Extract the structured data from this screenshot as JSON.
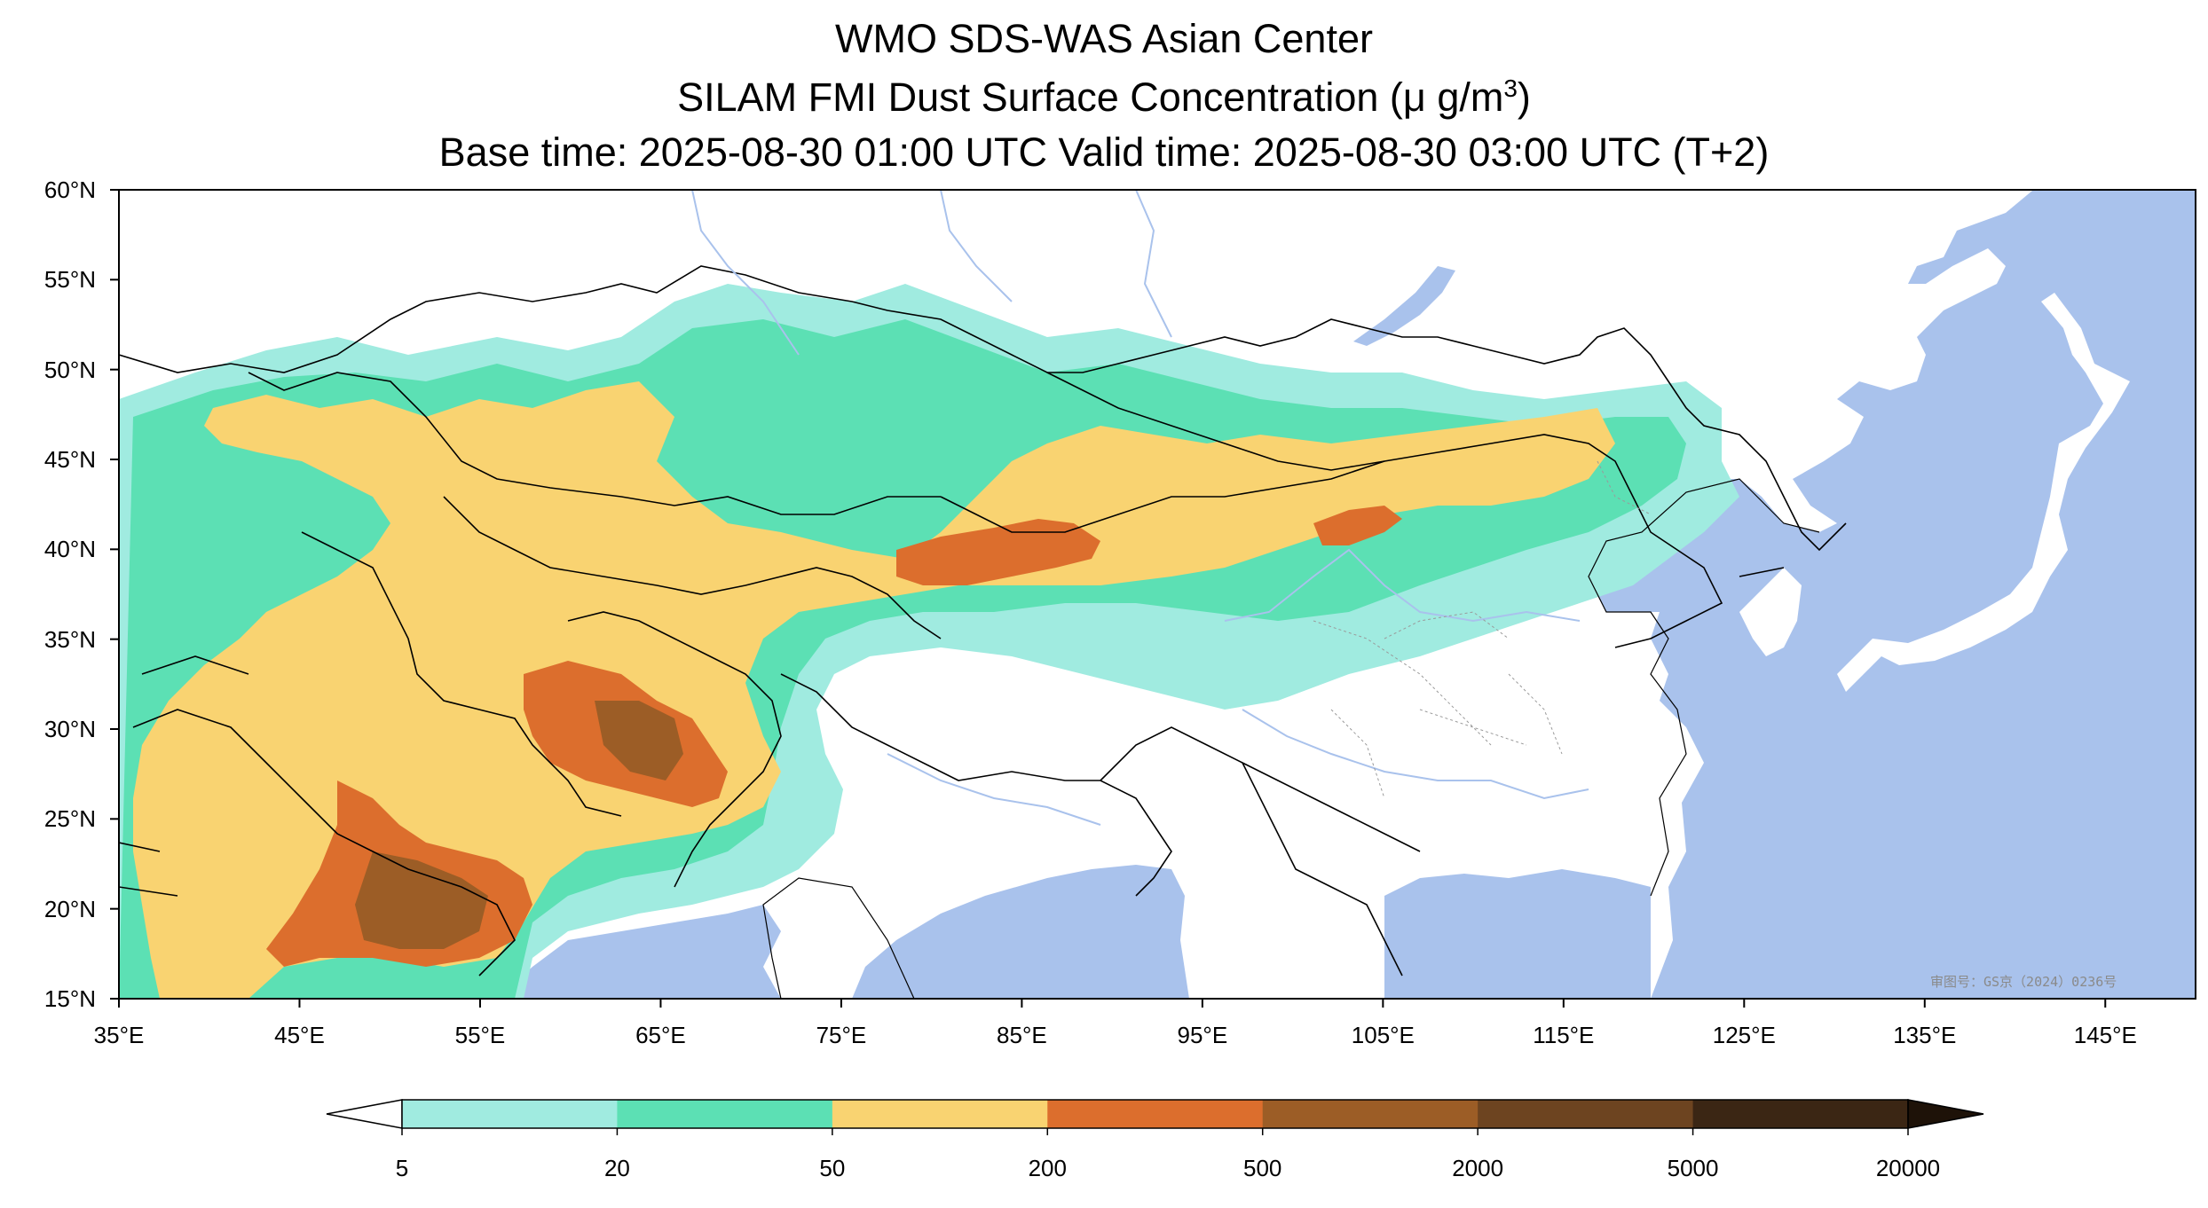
{
  "title": {
    "line1": "WMO SDS-WAS Asian Center",
    "line2_main": "SILAM FMI Dust Surface Concentration (",
    "line2_unit": "μ g/m",
    "line2_sup": "3",
    "line2_close": ")",
    "line3": "Base time: 2025-08-30 01:00 UTC Valid time: 2025-08-30 03:00 UTC (T+2)"
  },
  "map": {
    "lat_ticks": [
      "60°N",
      "55°N",
      "50°N",
      "45°N",
      "40°N",
      "35°N",
      "30°N",
      "25°N",
      "20°N",
      "15°N"
    ],
    "lon_ticks": [
      "35°E",
      "45°E",
      "55°E",
      "65°E",
      "75°E",
      "85°E",
      "95°E",
      "105°E",
      "115°E",
      "125°E",
      "135°E",
      "145°E"
    ],
    "extent": {
      "lon_min": 35,
      "lon_max": 150,
      "lat_min": 15,
      "lat_max": 60
    },
    "ocean_color": "#a9c2ec",
    "land_color": "#ffffff",
    "watermark": "审图号：GS京（2024）0236号"
  },
  "colorbar": {
    "levels": [
      "5",
      "20",
      "50",
      "200",
      "500",
      "2000",
      "5000",
      "20000"
    ],
    "colors": [
      "#a0ebe0",
      "#5ce0b4",
      "#f9d371",
      "#dc6e2d",
      "#9c5d26",
      "#6d4420",
      "#3b2614"
    ],
    "under_color": "#ffffff",
    "over_color": "#1e1208"
  },
  "legend_icons": [
    "extend-under-arrow-icon",
    "extend-over-arrow-icon"
  ]
}
